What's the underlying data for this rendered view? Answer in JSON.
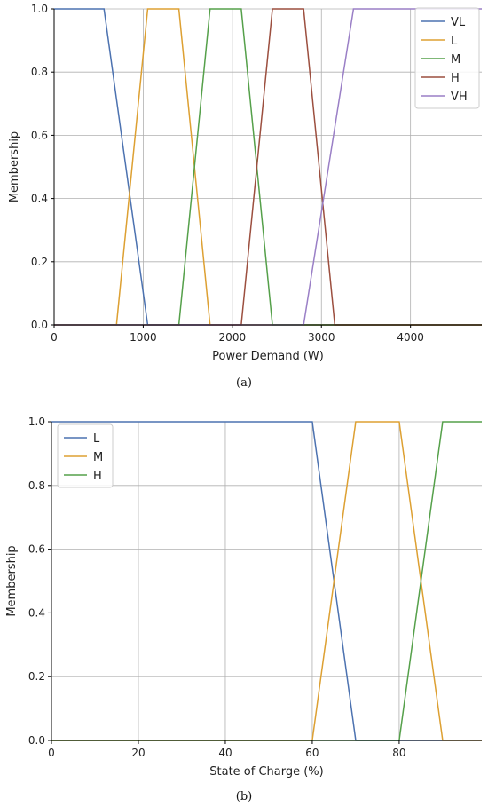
{
  "chart_data": [
    {
      "type": "line",
      "caption": "(a)",
      "xlabel": "Power Demand (W)",
      "ylabel": "Membership",
      "xlim": [
        0,
        4800
      ],
      "ylim": [
        0,
        1.0
      ],
      "xticks": [
        0,
        1000,
        2000,
        3000,
        4000
      ],
      "yticks": [
        0.0,
        0.2,
        0.4,
        0.6,
        0.8,
        1.0
      ],
      "grid": true,
      "legend_position": "top-right",
      "series": [
        {
          "name": "VL",
          "color": "#4c72b0",
          "x": [
            0,
            560,
            1050,
            4800
          ],
          "y": [
            1,
            1,
            0,
            0
          ]
        },
        {
          "name": "L",
          "color": "#dda032",
          "x": [
            0,
            700,
            1050,
            1400,
            1750,
            4800
          ],
          "y": [
            0,
            0,
            1,
            1,
            0,
            0
          ]
        },
        {
          "name": "M",
          "color": "#55a04a",
          "x": [
            0,
            1400,
            1750,
            2100,
            2450,
            4800
          ],
          "y": [
            0,
            0,
            1,
            1,
            0,
            0
          ]
        },
        {
          "name": "H",
          "color": "#9c4f3f",
          "x": [
            0,
            2100,
            2450,
            2800,
            3150,
            4800
          ],
          "y": [
            0,
            0,
            1,
            1,
            0,
            0
          ]
        },
        {
          "name": "VH",
          "color": "#9a7fc6",
          "x": [
            0,
            2800,
            3360,
            4800
          ],
          "y": [
            0,
            0,
            1,
            1
          ]
        }
      ]
    },
    {
      "type": "line",
      "caption": "(b)",
      "xlabel": "State of Charge (%)",
      "ylabel": "Membership",
      "xlim": [
        0,
        99
      ],
      "ylim": [
        0,
        1.0
      ],
      "xticks": [
        0,
        20,
        40,
        60,
        80
      ],
      "yticks": [
        0.0,
        0.2,
        0.4,
        0.6,
        0.8,
        1.0
      ],
      "grid": true,
      "legend_position": "top-left",
      "series": [
        {
          "name": "L",
          "color": "#4c72b0",
          "x": [
            0,
            60,
            70,
            99
          ],
          "y": [
            1,
            1,
            0,
            0
          ]
        },
        {
          "name": "M",
          "color": "#dda032",
          "x": [
            0,
            60,
            70,
            80,
            90,
            99
          ],
          "y": [
            0,
            0,
            1,
            1,
            0,
            0
          ]
        },
        {
          "name": "H",
          "color": "#55a04a",
          "x": [
            0,
            80,
            90,
            99
          ],
          "y": [
            0,
            0,
            1,
            1
          ]
        }
      ]
    }
  ]
}
